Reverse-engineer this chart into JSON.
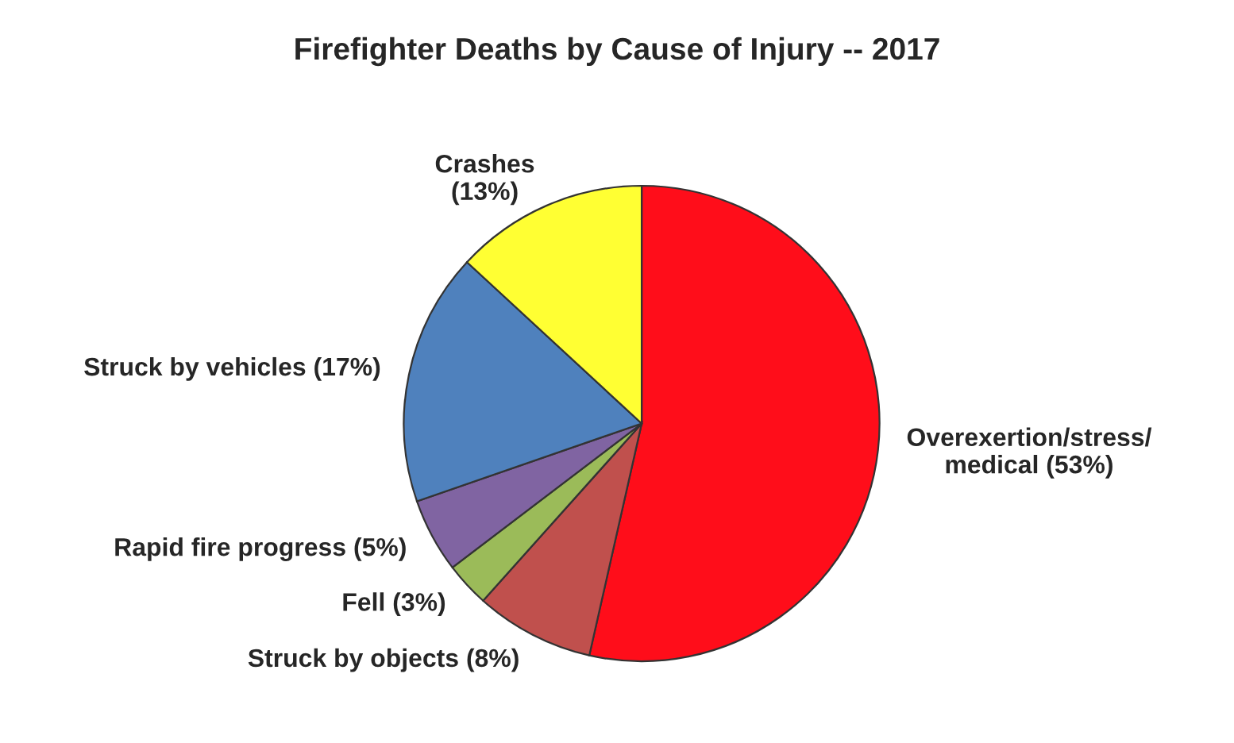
{
  "chart_data": {
    "type": "pie",
    "title": "Firefighter Deaths by Cause of Injury -- 2017",
    "categories": [
      "Overexertion/stress/\nmedical (53%)",
      "Struck by objects (8%)",
      "Fell (3%)",
      "Rapid fire progress (5%)",
      "Struck by vehicles (17%)",
      "Crashes\n(13%)"
    ],
    "values": [
      53,
      8,
      3,
      5,
      17,
      13
    ],
    "colors": [
      "#ff0d1a",
      "#c0504d",
      "#9bbb59",
      "#8064a2",
      "#4f81bd",
      "#ffff33"
    ]
  }
}
